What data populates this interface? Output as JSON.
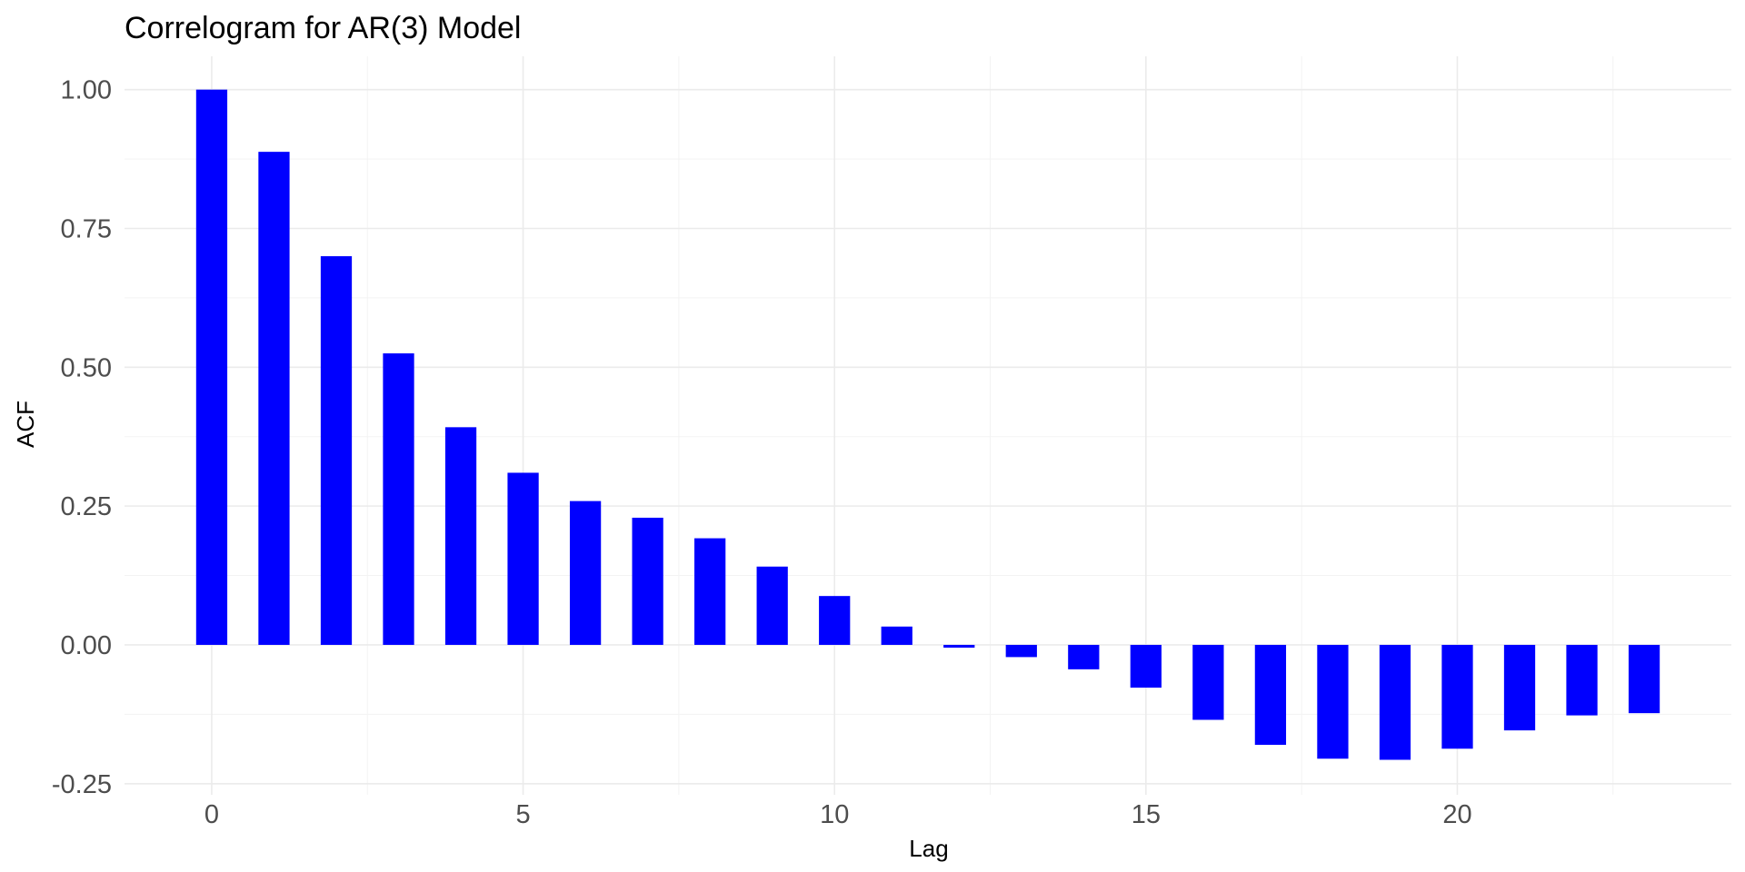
{
  "chart_data": {
    "type": "bar",
    "title": "Correlogram for AR(3) Model",
    "xlabel": "Lag",
    "ylabel": "ACF",
    "x": [
      0,
      1,
      2,
      3,
      4,
      5,
      6,
      7,
      8,
      9,
      10,
      11,
      12,
      13,
      14,
      15,
      16,
      17,
      18,
      19,
      20,
      21,
      22,
      23
    ],
    "values": [
      1.0,
      0.888,
      0.7,
      0.525,
      0.392,
      0.31,
      0.259,
      0.229,
      0.192,
      0.141,
      0.088,
      0.033,
      -0.005,
      -0.022,
      -0.044,
      -0.077,
      -0.135,
      -0.18,
      -0.205,
      -0.207,
      -0.187,
      -0.154,
      -0.127,
      -0.123
    ],
    "xticks": [
      0,
      5,
      10,
      15,
      20
    ],
    "xtick_labels": [
      "0",
      "5",
      "10",
      "15",
      "20"
    ],
    "yticks": [
      -0.25,
      0,
      0.25,
      0.5,
      0.75,
      1.0
    ],
    "ytick_labels": [
      "-0.25",
      "0.00",
      "0.25",
      "0.50",
      "0.75",
      "1.00"
    ],
    "xlim": [
      -1.4,
      24.4
    ],
    "ylim": [
      -0.27,
      1.06
    ],
    "grid": true,
    "legend": "none",
    "bar_color": "#0000ff"
  }
}
